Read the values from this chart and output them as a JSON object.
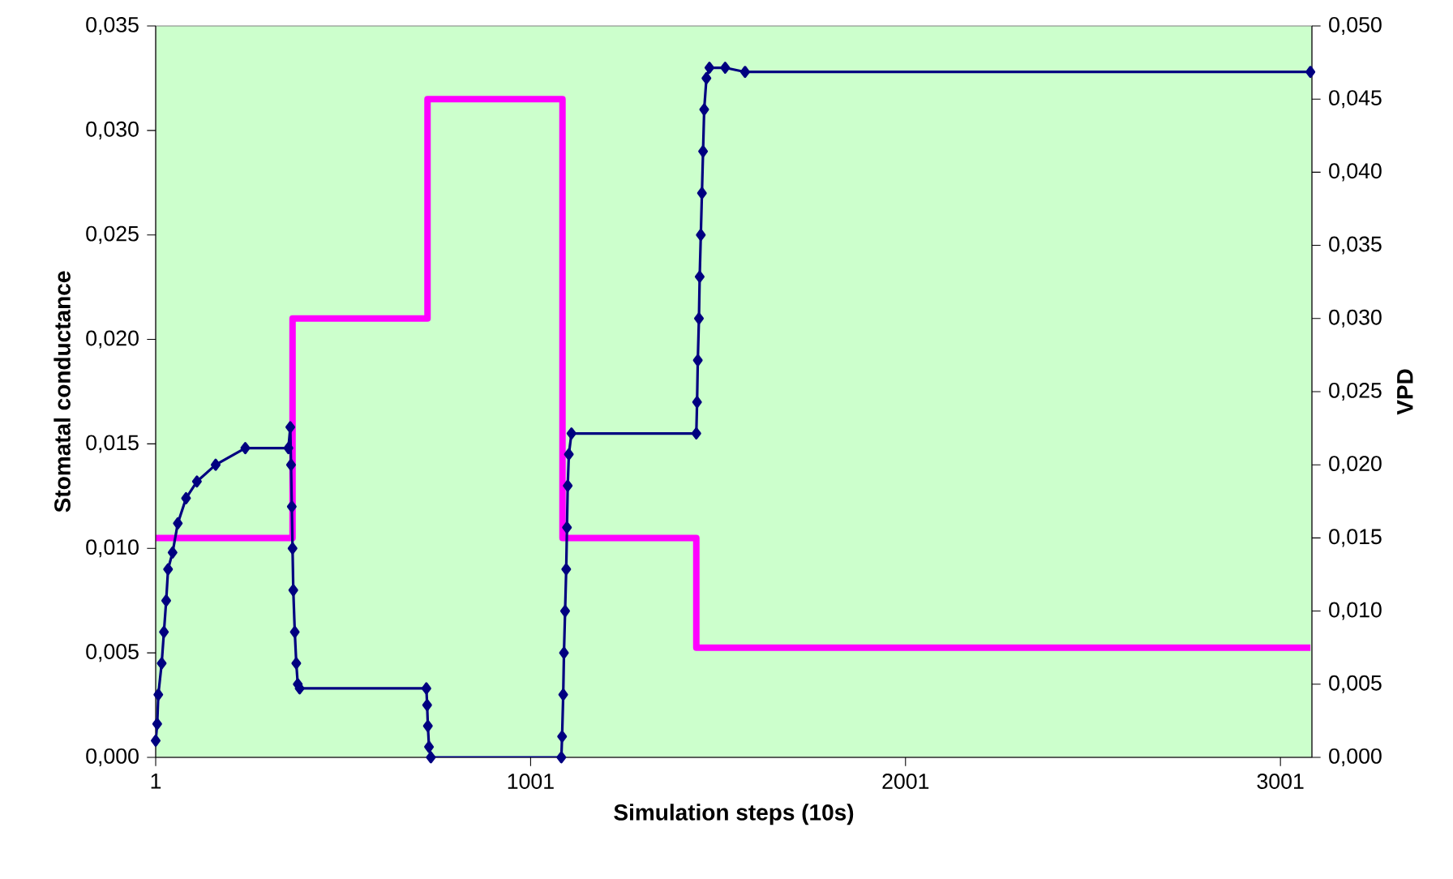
{
  "chart_data": {
    "type": "line",
    "xlabel": "Simulation steps (10s)",
    "ylabel": "Stomatal conductance",
    "y2label": "VPD",
    "xlim": [
      1,
      3085
    ],
    "xticks": [
      1,
      1001,
      2001,
      3001
    ],
    "ylim": [
      0,
      0.035
    ],
    "yticks": [
      {
        "value": 0,
        "label": "0,000"
      },
      {
        "value": 0.005,
        "label": "0,005"
      },
      {
        "value": 0.01,
        "label": "0,010"
      },
      {
        "value": 0.015,
        "label": "0,015"
      },
      {
        "value": 0.02,
        "label": "0,020"
      },
      {
        "value": 0.025,
        "label": "0,025"
      },
      {
        "value": 0.03,
        "label": "0,030"
      },
      {
        "value": 0.035,
        "label": "0,035"
      }
    ],
    "y2lim": [
      0,
      0.05
    ],
    "y2ticks": [
      {
        "value": 0,
        "label": "0,000"
      },
      {
        "value": 0.005,
        "label": "0,005"
      },
      {
        "value": 0.01,
        "label": "0,010"
      },
      {
        "value": 0.015,
        "label": "0,015"
      },
      {
        "value": 0.02,
        "label": "0,020"
      },
      {
        "value": 0.025,
        "label": "0,025"
      },
      {
        "value": 0.03,
        "label": "0,030"
      },
      {
        "value": 0.035,
        "label": "0,035"
      },
      {
        "value": 0.04,
        "label": "0,040"
      },
      {
        "value": 0.045,
        "label": "0,045"
      },
      {
        "value": 0.05,
        "label": "0,050"
      }
    ],
    "grid": false,
    "series": [
      {
        "color": "#000080",
        "marker": "diamond",
        "x": [
          1,
          5,
          8,
          17,
          23,
          29,
          34,
          46,
          60,
          82,
          111,
          161,
          240,
          355,
          360,
          362,
          364,
          366,
          368,
          372,
          376,
          380,
          385,
          723,
          725,
          727,
          730,
          735,
          1083,
          1085,
          1088,
          1090,
          1093,
          1096,
          1098,
          1100,
          1103,
          1110,
          1443,
          1445,
          1447,
          1450,
          1452,
          1455,
          1458,
          1461,
          1464,
          1470,
          1478,
          1520,
          1573,
          3081
        ],
        "values": [
          0.0008,
          0.0016,
          0.003,
          0.0045,
          0.006,
          0.0075,
          0.009,
          0.0098,
          0.0112,
          0.0124,
          0.0132,
          0.014,
          0.0148,
          0.0148,
          0.0158,
          0.014,
          0.012,
          0.01,
          0.008,
          0.006,
          0.0045,
          0.0035,
          0.0033,
          0.0033,
          0.0025,
          0.0015,
          0.0005,
          0,
          0,
          0.001,
          0.003,
          0.005,
          0.007,
          0.009,
          0.011,
          0.013,
          0.0145,
          0.0155,
          0.0155,
          0.017,
          0.019,
          0.021,
          0.023,
          0.025,
          0.027,
          0.029,
          0.031,
          0.0325,
          0.033,
          0.033,
          0.0328,
          0.0328
        ]
      },
      {
        "type": "step",
        "axis": "y2",
        "color": "#ff00ff",
        "marker": "none",
        "x": [
          1,
          366,
          726,
          1086,
          1443,
          3081
        ],
        "values": [
          0.015,
          0.03,
          0.045,
          0.015,
          0.0075,
          0.0075
        ]
      }
    ]
  }
}
